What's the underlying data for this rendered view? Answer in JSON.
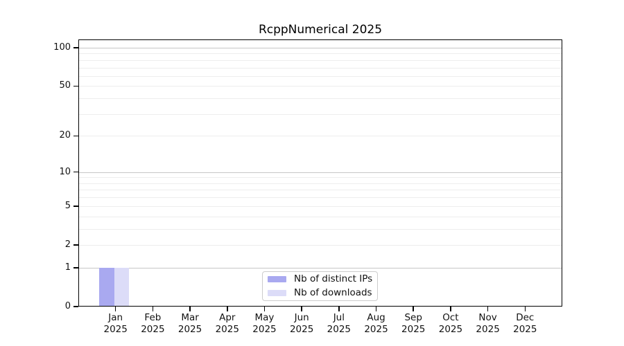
{
  "title": "RcppNumerical 2025",
  "colors": {
    "ips_bar": "#a9a9f0",
    "downloads_bar": "#dcdcf8",
    "grid_major": "#c6c6c6",
    "grid_minor": "#ededed",
    "axis": "#000000",
    "legend_border": "#cccccc",
    "background": "#ffffff"
  },
  "legend": {
    "items": [
      {
        "label": "Nb of distinct IPs",
        "color": "#a9a9f0"
      },
      {
        "label": "Nb of downloads",
        "color": "#dcdcf8"
      }
    ]
  },
  "y_axis": {
    "tick_values": [
      0,
      1,
      2,
      5,
      10,
      20,
      50,
      100
    ],
    "tick_labels": [
      "0",
      "1",
      "2",
      "5",
      "10",
      "20",
      "50",
      "100"
    ],
    "major_gridline_values": [
      1,
      10,
      100
    ],
    "minor_gridline_values": [
      2,
      3,
      4,
      5,
      6,
      7,
      8,
      9,
      20,
      30,
      40,
      50,
      60,
      70,
      80,
      90
    ],
    "scale": "log1p",
    "range": [
      0,
      100
    ]
  },
  "chart_data": {
    "type": "bar",
    "title": "RcppNumerical 2025",
    "categories": [
      "Jan 2025",
      "Feb 2025",
      "Mar 2025",
      "Apr 2025",
      "May 2025",
      "Jun 2025",
      "Jul 2025",
      "Aug 2025",
      "Sep 2025",
      "Oct 2025",
      "Nov 2025",
      "Dec 2025"
    ],
    "series": [
      {
        "name": "Nb of distinct IPs",
        "color": "#a9a9f0",
        "values": [
          1,
          0,
          0,
          0,
          0,
          0,
          0,
          0,
          0,
          0,
          0,
          0
        ]
      },
      {
        "name": "Nb of downloads",
        "color": "#dcdcf8",
        "values": [
          1,
          0,
          0,
          0,
          0,
          0,
          0,
          0,
          0,
          0,
          0,
          0
        ]
      }
    ],
    "xlabel": "",
    "ylabel": "",
    "yscale": "log1p",
    "ylim": [
      0,
      100
    ],
    "y_ticks": [
      0,
      1,
      2,
      5,
      10,
      20,
      50,
      100
    ],
    "grid": true,
    "legend_position": "lower center"
  }
}
